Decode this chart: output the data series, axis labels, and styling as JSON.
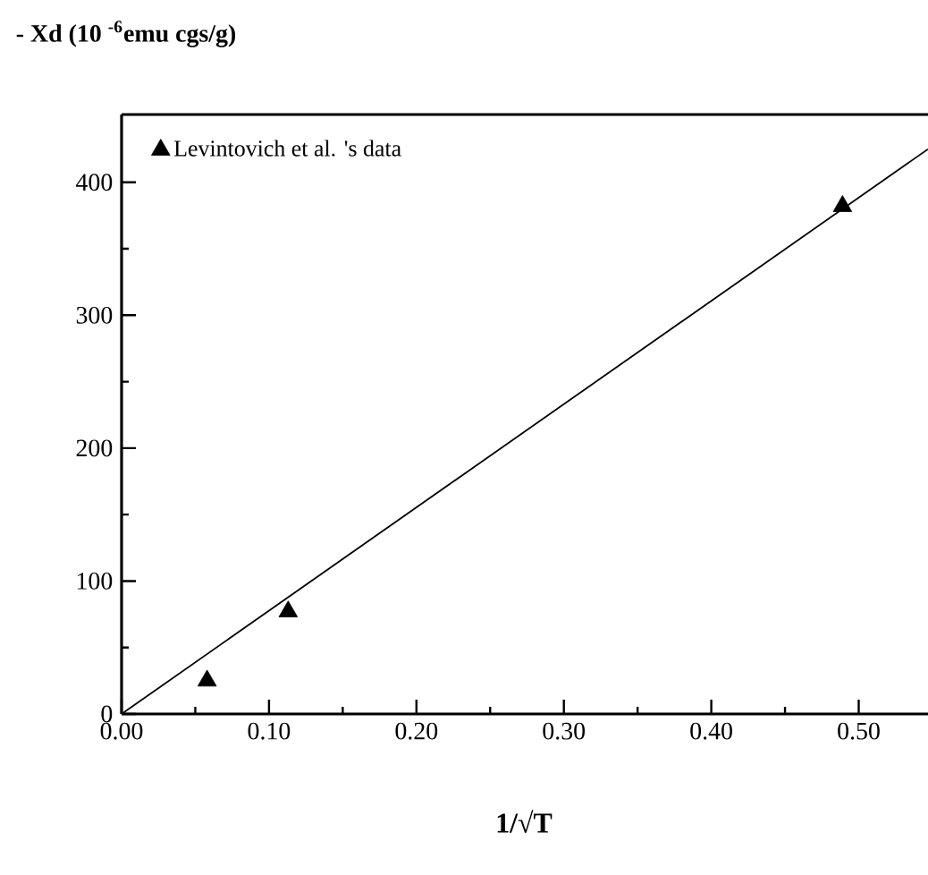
{
  "chart_data": {
    "type": "scatter",
    "ylabel": "- Xd (10 $^{-6}$emu cgs/g)",
    "xlabel": "1/√T",
    "xlim": [
      0,
      0.547
    ],
    "ylim": [
      0,
      451
    ],
    "xticks": [
      {
        "value": 0,
        "label": "0.00"
      },
      {
        "value": 0.05,
        "label": null
      },
      {
        "value": 0.1,
        "label": "0.10"
      },
      {
        "value": 0.15,
        "label": null
      },
      {
        "value": 0.2,
        "label": "0.20"
      },
      {
        "value": 0.25,
        "label": null
      },
      {
        "value": 0.3,
        "label": "0.30"
      },
      {
        "value": 0.35,
        "label": null
      },
      {
        "value": 0.4,
        "label": "0.40"
      },
      {
        "value": 0.45,
        "label": null
      },
      {
        "value": 0.5,
        "label": "0.50"
      }
    ],
    "yticks": [
      0,
      {
        "value": 50,
        "label": null
      },
      100,
      {
        "value": 150,
        "label": null
      },
      200,
      {
        "value": 250,
        "label": null
      },
      300,
      {
        "value": 350,
        "label": null
      },
      400
    ],
    "legend": "top left",
    "marker": "triangle",
    "grid": false,
    "series": [
      {
        "name": "Levintovich et al. 's data",
        "color": "#000000",
        "x": [
          0.058,
          0.113,
          0.489
        ],
        "values": [
          25,
          77,
          382
        ]
      },
      {
        "type": "line",
        "color": "#000000",
        "marker": "none",
        "x": [
          0,
          0.547
        ],
        "values": [
          0,
          425
        ]
      }
    ]
  }
}
